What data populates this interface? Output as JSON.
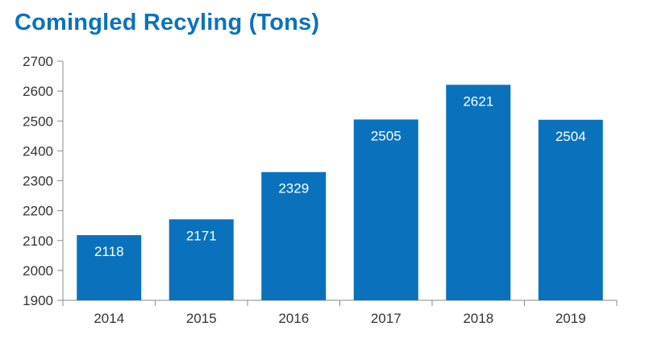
{
  "chart_data": {
    "type": "bar",
    "title": "Comingled Recyling (Tons)",
    "categories": [
      "2014",
      "2015",
      "2016",
      "2017",
      "2018",
      "2019"
    ],
    "values": [
      2118,
      2171,
      2329,
      2505,
      2621,
      2504
    ],
    "data_labels": [
      "2118",
      "2171",
      "2329",
      "2505",
      "2621",
      "2504"
    ],
    "ylim": [
      1900,
      2700
    ],
    "yticks": [
      1900,
      2000,
      2100,
      2200,
      2300,
      2400,
      2500,
      2600,
      2700
    ],
    "ytick_labels": [
      "1900",
      "2000",
      "2100",
      "2200",
      "2300",
      "2400",
      "2500",
      "2600",
      "2700"
    ],
    "xlabel": "",
    "ylabel": "",
    "grid": false,
    "legend": "none",
    "bar_color": "#0a72bd",
    "axis_color": "#8a8a8a"
  }
}
